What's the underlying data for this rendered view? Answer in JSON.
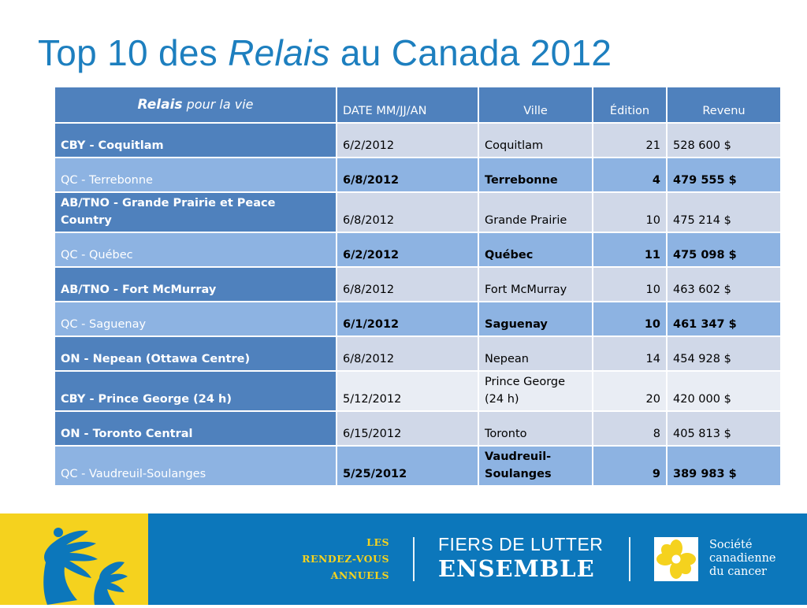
{
  "title": {
    "prefix": "Top 10 des ",
    "italic": "Relais",
    "suffix": " au Canada 2012"
  },
  "table": {
    "headers": {
      "relais_big": "Relais",
      "relais_small": " pour la vie",
      "date": "DATE  MM/JJ/AN",
      "ville": "Ville",
      "edition": "Édition",
      "revenu": "Revenu"
    },
    "rows": [
      {
        "name": "CBY - Coquitlam",
        "date": "6/2/2012",
        "ville": "Coquitlam",
        "edition": "21",
        "revenu": "528 600 $"
      },
      {
        "name": "QC - Terrebonne",
        "date": "6/8/2012",
        "ville": "Terrebonne",
        "edition": "4",
        "revenu": "479 555 $"
      },
      {
        "name": "AB/TNO - Grande Prairie  et Peace Country",
        "date": "6/8/2012",
        "ville": "Grande Prairie",
        "edition": "10",
        "revenu": "475 214 $"
      },
      {
        "name": "QC - Québec",
        "date": "6/2/2012",
        "ville": "Québec",
        "edition": "11",
        "revenu": "475 098 $"
      },
      {
        "name": "AB/TNO - Fort McMurray",
        "date": "6/8/2012",
        "ville": "Fort McMurray",
        "edition": "10",
        "revenu": "463 602 $"
      },
      {
        "name": "QC - Saguenay",
        "date": "6/1/2012",
        "ville": "Saguenay",
        "edition": "10",
        "revenu": "461 347 $"
      },
      {
        "name": "ON - Nepean (Ottawa Centre)",
        "date": "6/8/2012",
        "ville": "Nepean",
        "edition": "14",
        "revenu": "454 928 $"
      },
      {
        "name": "CBY - Prince George (24 h)",
        "date": "5/12/2012",
        "ville": "Prince George (24 h)",
        "edition": "20",
        "revenu": "420 000 $"
      },
      {
        "name": "ON - Toronto Central",
        "date": "6/15/2012",
        "ville": "Toronto",
        "edition": "8",
        "revenu": "405 813 $"
      },
      {
        "name": "QC - Vaudreuil-Soulanges",
        "date": "5/25/2012",
        "ville": "Vaudreuil-Soulanges",
        "edition": "9",
        "revenu": "389 983 $"
      }
    ]
  },
  "footer": {
    "rdv": [
      "LES",
      "RENDEZ-VOUS",
      "ANNUELS"
    ],
    "slogan_line1": "FIERS DE LUTTER",
    "slogan_line2": "ENSEMBLE",
    "org": [
      "Société",
      "canadienne",
      "du cancer"
    ],
    "colors": {
      "blue": "#0c77bb",
      "yellow": "#f5d21e"
    },
    "icons": [
      "hands-icon",
      "daffodil-logo-icon"
    ]
  }
}
